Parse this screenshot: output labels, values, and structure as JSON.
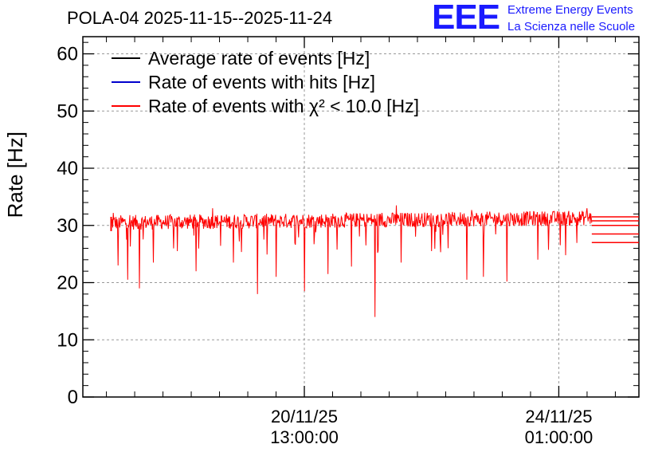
{
  "chart_data": {
    "type": "line",
    "title": "POLA-04 2025-11-15--2025-11-24",
    "ylabel": "Rate [Hz]",
    "xlabel": "",
    "ylim": [
      0,
      63
    ],
    "yticks": [
      0,
      10,
      20,
      30,
      40,
      50,
      60
    ],
    "xlim_hours": [
      0,
      236
    ],
    "xticks": [
      {
        "hour": 94,
        "date": "20/11/25",
        "time": "13:00:00"
      },
      {
        "hour": 202,
        "date": "24/11/25",
        "time": "01:00:00"
      }
    ],
    "x_minor_tick_step_hours": 12,
    "grid": true,
    "legend": [
      {
        "label": "Average rate of events [Hz]",
        "color": "#000000"
      },
      {
        "label": "Rate of events with hits [Hz]",
        "color": "#0000cc"
      },
      {
        "label": "Rate of events with χ² < 10.0 [Hz]",
        "color": "#ff0000"
      }
    ],
    "series": [
      {
        "name": "Rate of events with χ² < 10.0 [Hz]",
        "color": "#ff0000",
        "x_start_hour": 12,
        "x_end_hour": 216,
        "baseline_start": 30.5,
        "baseline_end": 31.3,
        "noise_band": 1.3,
        "peaks": [
          [
            13,
            32.2
          ],
          [
            20,
            31.8
          ],
          [
            55,
            33.0
          ],
          [
            127,
            32.2
          ],
          [
            133,
            33.5
          ],
          [
            165,
            32.7
          ],
          [
            214,
            33.0
          ]
        ],
        "dips": [
          [
            15,
            23.0
          ],
          [
            19,
            20.5
          ],
          [
            24,
            19.0
          ],
          [
            30,
            23.5
          ],
          [
            40,
            25.5
          ],
          [
            48,
            22.0
          ],
          [
            55,
            20.8
          ],
          [
            64,
            23.5
          ],
          [
            74,
            18.0
          ],
          [
            82,
            21.0
          ],
          [
            90,
            19.5
          ],
          [
            94,
            18.5
          ],
          [
            104,
            21.5
          ],
          [
            114,
            22.8
          ],
          [
            124,
            14.0
          ],
          [
            135,
            23.5
          ],
          [
            148,
            25.5
          ],
          [
            163,
            20.5
          ],
          [
            170,
            21.0
          ],
          [
            180,
            20.2
          ],
          [
            193,
            24.0
          ],
          [
            205,
            24.8
          ],
          [
            214,
            21.5
          ]
        ],
        "tail_levels": [
          31.5,
          30.8,
          30.0,
          28.5,
          27.0
        ]
      }
    ],
    "logo": {
      "mark": "EEE",
      "line1": "Extreme Energy Events",
      "line2": "La Scienza nelle Scuole"
    }
  }
}
